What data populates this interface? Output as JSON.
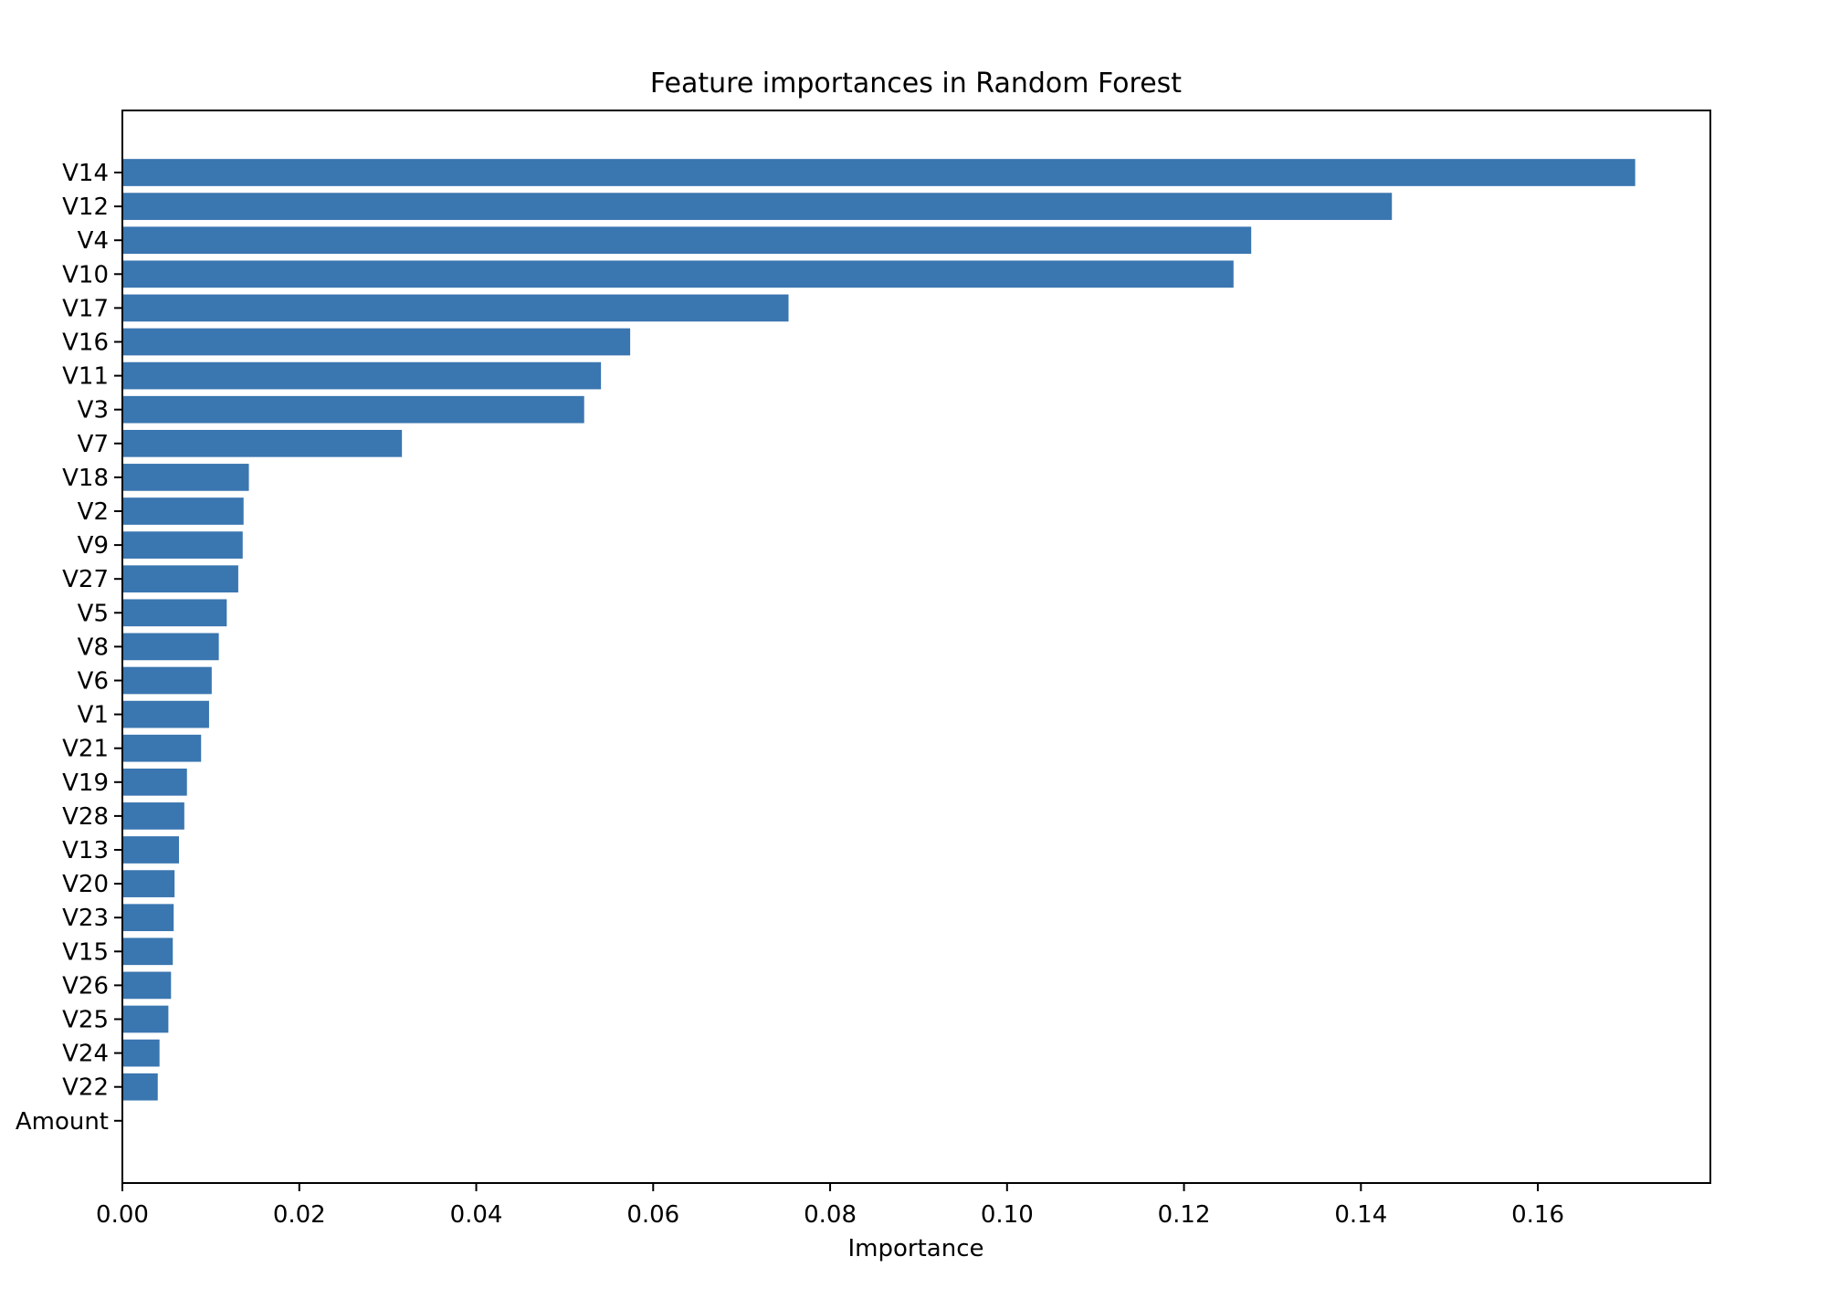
{
  "chart_data": {
    "type": "bar",
    "orientation": "horizontal",
    "title": "Feature importances in Random Forest",
    "xlabel": "Importance",
    "ylabel": "",
    "xlim": [
      0.0,
      0.1795
    ],
    "xticks": [
      "0.00",
      "0.02",
      "0.04",
      "0.06",
      "0.08",
      "0.10",
      "0.12",
      "0.14",
      "0.16"
    ],
    "xtick_values": [
      0.0,
      0.02,
      0.04,
      0.06,
      0.08,
      0.1,
      0.12,
      0.14,
      0.16
    ],
    "grid": false,
    "bar_color": "#3a76b0",
    "categories": [
      "V14",
      "V12",
      "V4",
      "V10",
      "V17",
      "V16",
      "V11",
      "V3",
      "V7",
      "V18",
      "V2",
      "V9",
      "V27",
      "V5",
      "V8",
      "V6",
      "V1",
      "V21",
      "V19",
      "V28",
      "V13",
      "V20",
      "V23",
      "V15",
      "V26",
      "V25",
      "V24",
      "V22",
      "Amount"
    ],
    "values": [
      0.171,
      0.1435,
      0.1276,
      0.1256,
      0.0753,
      0.0574,
      0.0541,
      0.0522,
      0.0316,
      0.0143,
      0.0137,
      0.0136,
      0.0131,
      0.0118,
      0.0109,
      0.0101,
      0.0098,
      0.0089,
      0.0073,
      0.007,
      0.0064,
      0.0059,
      0.0058,
      0.0057,
      0.0055,
      0.0052,
      0.0042,
      0.004,
      0.0
    ]
  }
}
